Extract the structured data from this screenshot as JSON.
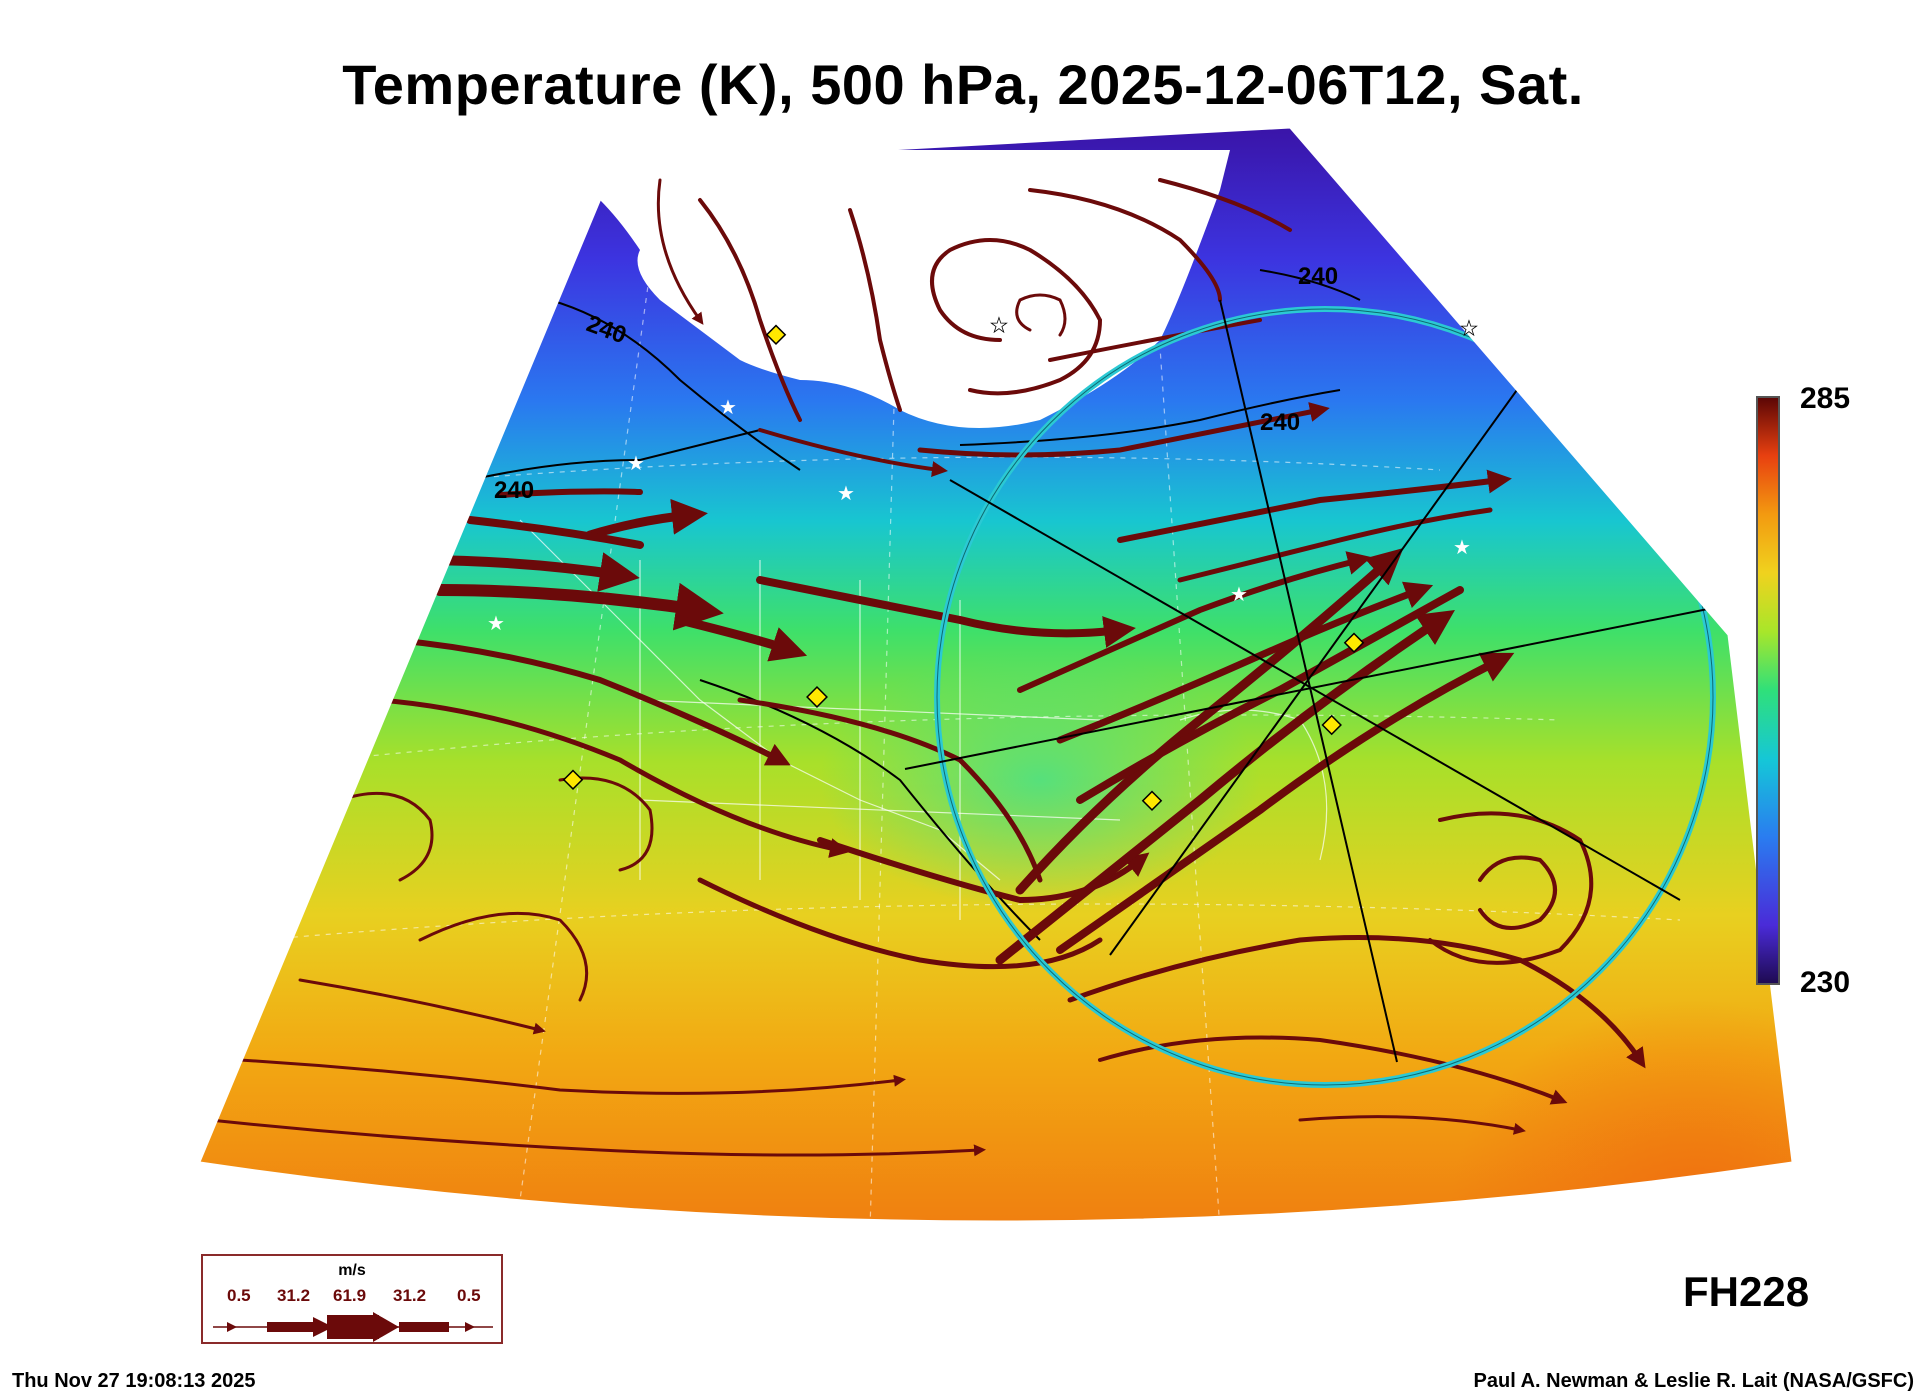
{
  "title": "Temperature (K), 500 hPa, 2025-12-06T12, Sat.",
  "colorbar": {
    "max_label": "285",
    "min_label": "230",
    "colors": [
      "#2a0f6e",
      "#4a2bd8",
      "#2a6cf0",
      "#15c6d8",
      "#2fe07a",
      "#a8e62a",
      "#f0d21e",
      "#f39a10",
      "#ee5a10",
      "#c81a10",
      "#5a0505"
    ]
  },
  "contour_labels": [
    "240",
    "240",
    "240",
    "240"
  ],
  "wind_legend": {
    "unit": "m/s",
    "values": [
      "0.5",
      "31.2",
      "61.9",
      "31.2",
      "0.5"
    ]
  },
  "forecast_hour": "FH228",
  "timestamp": "Thu Nov 27 19:08:13 2025",
  "credit": "Paul A. Newman & Leslie R. Lait (NASA/GSFC)",
  "colors": {
    "streamline": "#6b0a0a",
    "circle": "#2bc9d4",
    "marker": "#ffe800"
  }
}
